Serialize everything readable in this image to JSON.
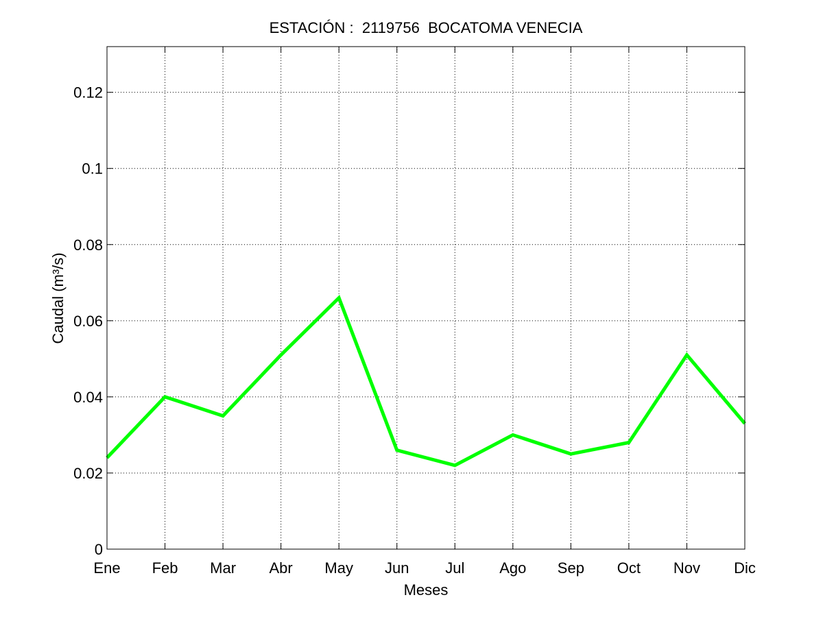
{
  "chart_data": {
    "type": "line",
    "title": "ESTACIÓN :  2119756  BOCATOMA VENECIA",
    "xlabel": "Meses",
    "ylabel": "Caudal (m³/s)",
    "categories": [
      "Ene",
      "Feb",
      "Mar",
      "Abr",
      "May",
      "Jun",
      "Jul",
      "Ago",
      "Sep",
      "Oct",
      "Nov",
      "Dic"
    ],
    "yticks": [
      0,
      0.02,
      0.04,
      0.06,
      0.08,
      0.1,
      0.12
    ],
    "ytick_labels": [
      "0",
      "0.02",
      "0.04",
      "0.06",
      "0.08",
      "0.1",
      "0.12"
    ],
    "ylim": [
      0,
      0.132
    ],
    "grid": true,
    "series": [
      {
        "color": "#00ff00",
        "values": [
          0.024,
          0.04,
          0.035,
          0.051,
          0.066,
          0.026,
          0.022,
          0.03,
          0.025,
          0.028,
          0.051,
          0.033
        ]
      }
    ]
  }
}
